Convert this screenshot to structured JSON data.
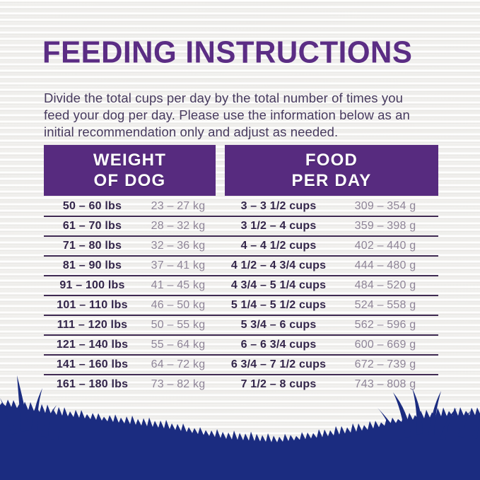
{
  "page": {
    "title": "FEEDING INSTRUCTIONS",
    "intro": "Divide the total cups per day by the total number of times you\nfeed your dog per day. Please use the information below as an\ninitial recommendation only and adjust as needed."
  },
  "colors": {
    "title_purple": "#5b2d84",
    "header_block_purple": "#572b7f",
    "header_text_white": "#ffffff",
    "intro_text": "#473a5e",
    "row_primary_text": "#33254a",
    "row_secondary_text": "#8f8598",
    "row_separator": "#3f2a52",
    "grass_navy": "#1b2c80",
    "background": "#f4f3f1"
  },
  "table": {
    "headers": [
      {
        "label": "WEIGHT\nOF DOG"
      },
      {
        "label": "FOOD\nPER DAY"
      }
    ],
    "rows": [
      {
        "lbs": "50 – 60 lbs",
        "kg": "23 – 27 kg",
        "cups": "3 – 3 1/2 cups",
        "grams": "309 – 354 g"
      },
      {
        "lbs": "61 – 70 lbs",
        "kg": "28 – 32 kg",
        "cups": "3 1/2 – 4 cups",
        "grams": "359 – 398 g"
      },
      {
        "lbs": "71 – 80 lbs",
        "kg": "32 – 36 kg",
        "cups": "4 – 4 1/2 cups",
        "grams": "402 – 440 g"
      },
      {
        "lbs": "81 – 90 lbs",
        "kg": "37 – 41 kg",
        "cups": "4 1/2 – 4 3/4 cups",
        "grams": "444 – 480 g"
      },
      {
        "lbs": "91 – 100 lbs",
        "kg": "41 – 45 kg",
        "cups": "4 3/4 – 5 1/4 cups",
        "grams": "484 – 520 g"
      },
      {
        "lbs": "101 – 110 lbs",
        "kg": "46 – 50 kg",
        "cups": "5 1/4 – 5 1/2 cups",
        "grams": "524 – 558 g"
      },
      {
        "lbs": "111 – 120 lbs",
        "kg": "50 – 55 kg",
        "cups": "5 3/4 – 6 cups",
        "grams": "562 – 596 g"
      },
      {
        "lbs": "121 – 140 lbs",
        "kg": "55 – 64 kg",
        "cups": "6 – 6 3/4 cups",
        "grams": "600 – 669 g"
      },
      {
        "lbs": "141 – 160 lbs",
        "kg": "64 – 72 kg",
        "cups": "6 3/4 – 7 1/2 cups",
        "grams": "672 – 739 g"
      },
      {
        "lbs": "161 – 180 lbs",
        "kg": "73 – 82 kg",
        "cups": "7 1/2 – 8 cups",
        "grams": "743 – 808 g"
      }
    ]
  }
}
